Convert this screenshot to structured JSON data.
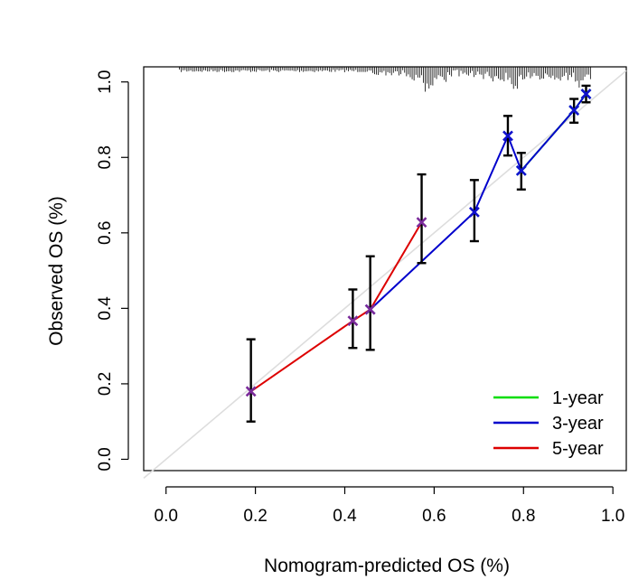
{
  "chart_data": {
    "type": "line",
    "title": "",
    "xlabel": "Nomogram-predicted OS (%)",
    "ylabel": "Observed OS (%)",
    "xlim": [
      -0.05,
      1.03
    ],
    "ylim": [
      -0.03,
      1.04
    ],
    "xticks": [
      "0.0",
      "0.2",
      "0.4",
      "0.6",
      "0.8",
      "1.0"
    ],
    "yticks": [
      "0.0",
      "0.2",
      "0.4",
      "0.6",
      "0.8",
      "1.0"
    ],
    "legend_position": "bottom-right",
    "reference_line": {
      "from": [
        -0.05,
        -0.05
      ],
      "to": [
        1.03,
        1.03
      ],
      "color": "#dddddd"
    },
    "rug": {
      "side": "top",
      "note": "distribution of predicted values",
      "x_range": [
        0.03,
        0.95
      ]
    },
    "series": [
      {
        "name": "1-year",
        "color": "#00dd00",
        "marker_color": "#22c0c0",
        "x": [
          0.795,
          0.913,
          0.94
        ],
        "y": [
          0.765,
          0.925,
          0.968
        ],
        "lower": [
          0.715,
          0.892,
          0.946
        ],
        "upper": [
          0.812,
          0.955,
          0.99
        ]
      },
      {
        "name": "3-year",
        "color": "#0000cc",
        "marker_color": "#1010cc",
        "x": [
          0.457,
          0.69,
          0.765,
          0.795,
          0.913,
          0.94
        ],
        "y": [
          0.397,
          0.655,
          0.857,
          0.765,
          0.925,
          0.968
        ],
        "lower": [
          0.29,
          0.578,
          0.805,
          0.715,
          0.892,
          0.946
        ],
        "upper": [
          0.538,
          0.74,
          0.91,
          0.812,
          0.955,
          0.99
        ]
      },
      {
        "name": "5-year",
        "color": "#dd0000",
        "marker_color": "#7a2a9a",
        "x": [
          0.19,
          0.418,
          0.457,
          0.572
        ],
        "y": [
          0.18,
          0.367,
          0.397,
          0.628
        ],
        "lower": [
          0.1,
          0.295,
          0.29,
          0.52
        ],
        "upper": [
          0.318,
          0.45,
          0.538,
          0.755
        ]
      }
    ]
  }
}
